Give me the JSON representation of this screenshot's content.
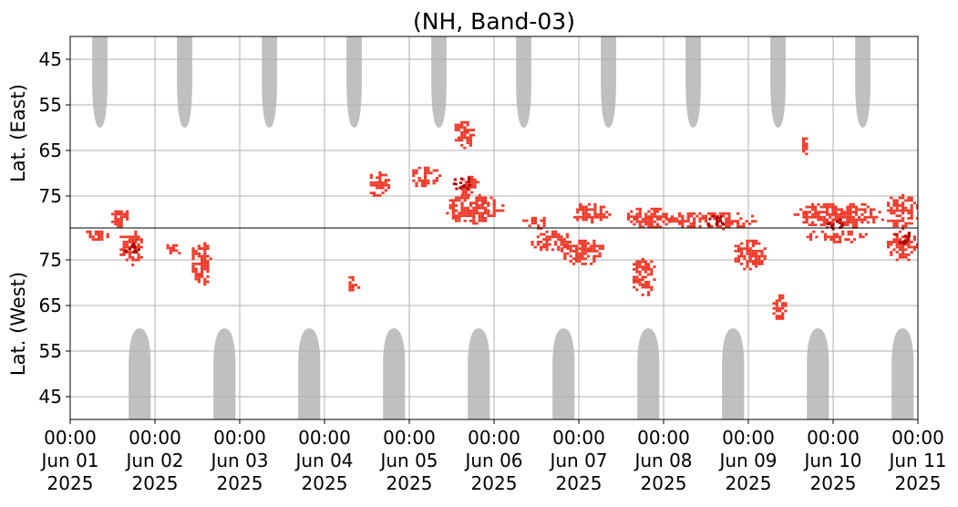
{
  "chart_data": {
    "type": "heatmap",
    "title": "(NH, Band-03)",
    "x_range": [
      "Jun 01 2025 00:00",
      "Jun 11 2025 00:00"
    ],
    "x_ticks": [
      {
        "day": 0,
        "time": "00:00",
        "date": "Jun 01",
        "year": "2025"
      },
      {
        "day": 1,
        "time": "00:00",
        "date": "Jun 02",
        "year": "2025"
      },
      {
        "day": 2,
        "time": "00:00",
        "date": "Jun 03",
        "year": "2025"
      },
      {
        "day": 3,
        "time": "00:00",
        "date": "Jun 04",
        "year": "2025"
      },
      {
        "day": 4,
        "time": "00:00",
        "date": "Jun 05",
        "year": "2025"
      },
      {
        "day": 5,
        "time": "00:00",
        "date": "Jun 06",
        "year": "2025"
      },
      {
        "day": 6,
        "time": "00:00",
        "date": "Jun 07",
        "year": "2025"
      },
      {
        "day": 7,
        "time": "00:00",
        "date": "Jun 08",
        "year": "2025"
      },
      {
        "day": 8,
        "time": "00:00",
        "date": "Jun 09",
        "year": "2025"
      },
      {
        "day": 9,
        "time": "00:00",
        "date": "Jun 10",
        "year": "2025"
      },
      {
        "day": 10,
        "time": "00:00",
        "date": "Jun 11",
        "year": "2025"
      }
    ],
    "panels": [
      {
        "name": "east",
        "ylabel": "Lat. (East)",
        "lat_top": 40,
        "lat_bottom": 82,
        "ticks": [
          "45",
          "55",
          "65",
          "75"
        ]
      },
      {
        "name": "west",
        "ylabel": "Lat. (West)",
        "lat_top": 82,
        "lat_bottom": 40,
        "ticks": [
          "75",
          "65",
          "55",
          "45"
        ]
      }
    ],
    "grid": true,
    "colors": {
      "coverage": "#c0c0c0",
      "activity": "#f03a2a",
      "activity_strong": "#b00000",
      "grid": "#b0b0b0"
    },
    "coverage_gaps": [
      {
        "panel": "east",
        "center_day": 0.35,
        "width_days": 0.18,
        "lat_reach": 60
      },
      {
        "panel": "east",
        "center_day": 1.35,
        "width_days": 0.18,
        "lat_reach": 60
      },
      {
        "panel": "east",
        "center_day": 2.35,
        "width_days": 0.18,
        "lat_reach": 60
      },
      {
        "panel": "east",
        "center_day": 3.35,
        "width_days": 0.18,
        "lat_reach": 60
      },
      {
        "panel": "east",
        "center_day": 4.35,
        "width_days": 0.18,
        "lat_reach": 60
      },
      {
        "panel": "east",
        "center_day": 5.35,
        "width_days": 0.18,
        "lat_reach": 60
      },
      {
        "panel": "east",
        "center_day": 6.35,
        "width_days": 0.18,
        "lat_reach": 60
      },
      {
        "panel": "east",
        "center_day": 7.35,
        "width_days": 0.18,
        "lat_reach": 60
      },
      {
        "panel": "east",
        "center_day": 8.35,
        "width_days": 0.18,
        "lat_reach": 60
      },
      {
        "panel": "east",
        "center_day": 9.35,
        "width_days": 0.18,
        "lat_reach": 60
      },
      {
        "panel": "west",
        "center_day": 0.82,
        "width_days": 0.26,
        "lat_reach": 60
      },
      {
        "panel": "west",
        "center_day": 1.82,
        "width_days": 0.26,
        "lat_reach": 60
      },
      {
        "panel": "west",
        "center_day": 2.82,
        "width_days": 0.26,
        "lat_reach": 60
      },
      {
        "panel": "west",
        "center_day": 3.82,
        "width_days": 0.26,
        "lat_reach": 60
      },
      {
        "panel": "west",
        "center_day": 4.82,
        "width_days": 0.26,
        "lat_reach": 60
      },
      {
        "panel": "west",
        "center_day": 5.82,
        "width_days": 0.26,
        "lat_reach": 60
      },
      {
        "panel": "west",
        "center_day": 6.82,
        "width_days": 0.26,
        "lat_reach": 60
      },
      {
        "panel": "west",
        "center_day": 7.82,
        "width_days": 0.26,
        "lat_reach": 60
      },
      {
        "panel": "west",
        "center_day": 8.82,
        "width_days": 0.26,
        "lat_reach": 60
      },
      {
        "panel": "west",
        "center_day": 9.82,
        "width_days": 0.26,
        "lat_reach": 60
      }
    ],
    "activity_regions": [
      {
        "panel": "east",
        "day_start": 0.45,
        "day_end": 0.7,
        "lat_min": 77,
        "lat_max": 82
      },
      {
        "panel": "west",
        "day_start": 0.15,
        "day_end": 0.45,
        "lat_min": 79,
        "lat_max": 82
      },
      {
        "panel": "west",
        "day_start": 0.55,
        "day_end": 0.85,
        "lat_min": 74,
        "lat_max": 82
      },
      {
        "panel": "west",
        "day_start": 1.1,
        "day_end": 1.3,
        "lat_min": 76,
        "lat_max": 79
      },
      {
        "panel": "west",
        "day_start": 1.4,
        "day_end": 1.65,
        "lat_min": 69,
        "lat_max": 80
      },
      {
        "panel": "east",
        "day_start": 3.5,
        "day_end": 3.75,
        "lat_min": 69,
        "lat_max": 75
      },
      {
        "panel": "east",
        "day_start": 4.0,
        "day_end": 4.35,
        "lat_min": 68,
        "lat_max": 73
      },
      {
        "panel": "east",
        "day_start": 4.4,
        "day_end": 5.1,
        "lat_min": 74,
        "lat_max": 81
      },
      {
        "panel": "east",
        "day_start": 4.5,
        "day_end": 4.75,
        "lat_min": 58,
        "lat_max": 65
      },
      {
        "panel": "east",
        "day_start": 4.55,
        "day_end": 4.8,
        "lat_min": 70,
        "lat_max": 75
      },
      {
        "panel": "west",
        "day_start": 3.25,
        "day_end": 3.4,
        "lat_min": 68,
        "lat_max": 72
      },
      {
        "panel": "east",
        "day_start": 5.3,
        "day_end": 5.65,
        "lat_min": 79,
        "lat_max": 82
      },
      {
        "panel": "east",
        "day_start": 5.9,
        "day_end": 6.35,
        "lat_min": 76,
        "lat_max": 81
      },
      {
        "panel": "west",
        "day_start": 5.4,
        "day_end": 5.9,
        "lat_min": 77,
        "lat_max": 82
      },
      {
        "panel": "west",
        "day_start": 5.75,
        "day_end": 6.3,
        "lat_min": 74,
        "lat_max": 80
      },
      {
        "panel": "east",
        "day_start": 6.5,
        "day_end": 7.1,
        "lat_min": 77,
        "lat_max": 82
      },
      {
        "panel": "west",
        "day_start": 6.6,
        "day_end": 6.9,
        "lat_min": 67,
        "lat_max": 76
      },
      {
        "panel": "east",
        "day_start": 7.0,
        "day_end": 8.1,
        "lat_min": 78,
        "lat_max": 82
      },
      {
        "panel": "west",
        "day_start": 7.8,
        "day_end": 8.2,
        "lat_min": 73,
        "lat_max": 80
      },
      {
        "panel": "west",
        "day_start": 8.25,
        "day_end": 8.45,
        "lat_min": 62,
        "lat_max": 68
      },
      {
        "panel": "east",
        "day_start": 8.5,
        "day_end": 9.6,
        "lat_min": 76,
        "lat_max": 82
      },
      {
        "panel": "east",
        "day_start": 8.6,
        "day_end": 8.7,
        "lat_min": 61,
        "lat_max": 66
      },
      {
        "panel": "west",
        "day_start": 8.65,
        "day_end": 9.4,
        "lat_min": 79,
        "lat_max": 82
      },
      {
        "panel": "east",
        "day_start": 9.6,
        "day_end": 10.0,
        "lat_min": 74,
        "lat_max": 82
      },
      {
        "panel": "west",
        "day_start": 9.6,
        "day_end": 10.0,
        "lat_min": 75,
        "lat_max": 82
      }
    ],
    "strong_spots": [
      {
        "panel": "west",
        "day": 0.7,
        "lat": 78
      },
      {
        "panel": "east",
        "day": 4.6,
        "lat": 72
      },
      {
        "panel": "east",
        "day": 9.0,
        "lat": 81
      },
      {
        "panel": "west",
        "day": 9.8,
        "lat": 80
      },
      {
        "panel": "east",
        "day": 7.6,
        "lat": 80
      }
    ]
  }
}
